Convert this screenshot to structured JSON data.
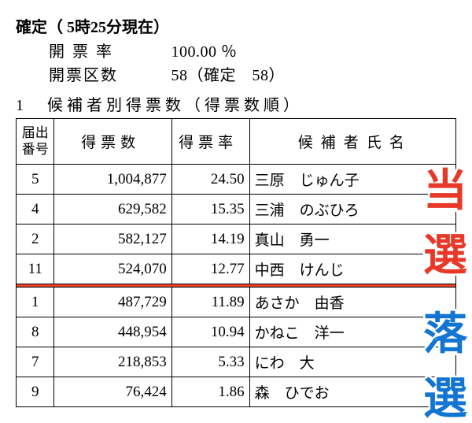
{
  "header": {
    "title": "確定（ 5時25分現在）",
    "rate_label": "開票率",
    "rate_value": "100.00 ％",
    "districts_label": "開票区数",
    "districts_value": "58（確定　58）",
    "subtitle": "1　候補者別得票数（得票数順）"
  },
  "table": {
    "columns": {
      "c1a": "届出",
      "c1b": "番号",
      "c2": "得票数",
      "c3": "得票率",
      "c4": "候補者氏名"
    },
    "rows_top": [
      {
        "no": "5",
        "votes": "1,004,877",
        "pct": "24.50",
        "name": "三原　じゅん子"
      },
      {
        "no": "4",
        "votes": "629,582",
        "pct": "15.35",
        "name": "三浦　のぶひろ"
      },
      {
        "no": "2",
        "votes": "582,127",
        "pct": "14.19",
        "name": "真山　勇一"
      },
      {
        "no": "11",
        "votes": "524,070",
        "pct": "12.77",
        "name": "中西　けんじ"
      }
    ],
    "rows_bottom": [
      {
        "no": "1",
        "votes": "487,729",
        "pct": "11.89",
        "name": "あさか　由香"
      },
      {
        "no": "8",
        "votes": "448,954",
        "pct": "10.94",
        "name": "かねこ　洋一"
      },
      {
        "no": "7",
        "votes": "218,853",
        "pct": "5.33",
        "name": "にわ　大"
      },
      {
        "no": "9",
        "votes": "76,424",
        "pct": "1.86",
        "name": "森　ひでお"
      }
    ],
    "divider_color": "#f54029"
  },
  "overlay": {
    "elected_color": "#e83828",
    "defeated_color": "#1275d1",
    "elected1": "当",
    "elected2": "選",
    "defeated1": "落",
    "defeated2": "選"
  }
}
